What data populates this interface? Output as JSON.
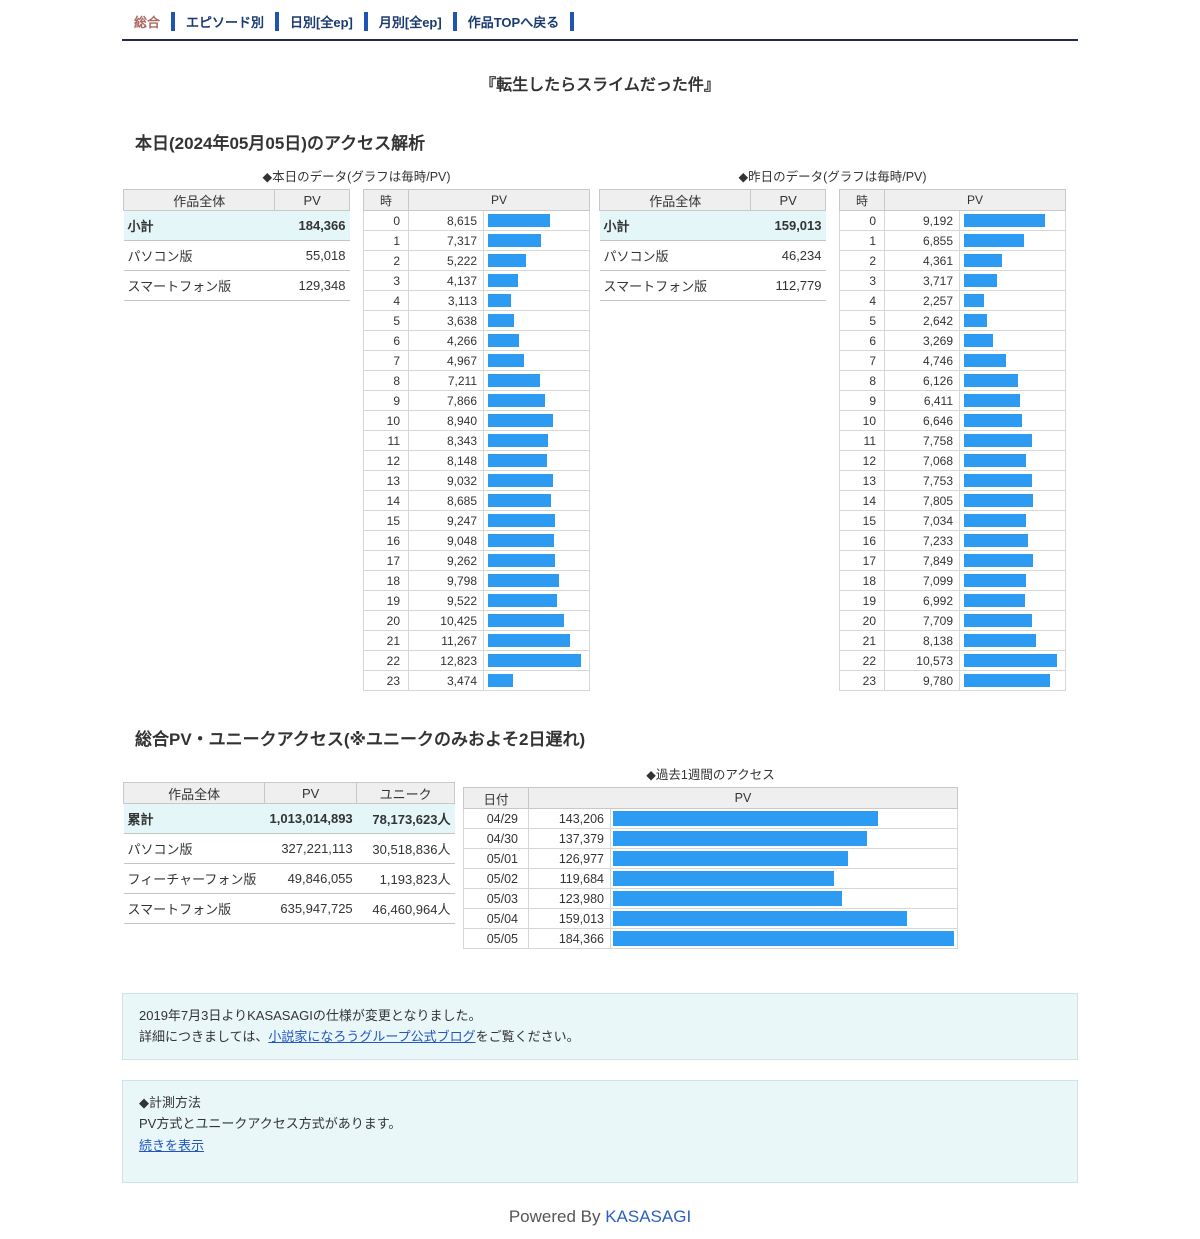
{
  "nav": {
    "items": [
      {
        "label": "総合",
        "current": true
      },
      {
        "label": "エピソード別",
        "current": false
      },
      {
        "label": "日別[全ep]",
        "current": false
      },
      {
        "label": "月別[全ep]",
        "current": false
      },
      {
        "label": "作品TOPへ戻る",
        "current": false
      }
    ]
  },
  "page_title": "『転生したらスライムだった件』",
  "today_section": {
    "heading": "本日(2024年05月05日)のアクセス解析",
    "today": {
      "caption": "◆本日のデータ(グラフは毎時/PV)",
      "summary": {
        "headers": [
          "作品全体",
          "PV"
        ],
        "rows": [
          {
            "label": "小計",
            "pv": "184,366",
            "highlight": true
          },
          {
            "label": "パソコン版",
            "pv": "55,018",
            "highlight": false
          },
          {
            "label": "スマートフォン版",
            "pv": "129,348",
            "highlight": false
          }
        ]
      },
      "hourly": {
        "headers": [
          "時",
          "PV"
        ],
        "rows": [
          {
            "label": "0",
            "value": 8615
          },
          {
            "label": "1",
            "value": 7317
          },
          {
            "label": "2",
            "value": 5222
          },
          {
            "label": "3",
            "value": 4137
          },
          {
            "label": "4",
            "value": 3113
          },
          {
            "label": "5",
            "value": 3638
          },
          {
            "label": "6",
            "value": 4266
          },
          {
            "label": "7",
            "value": 4967
          },
          {
            "label": "8",
            "value": 7211
          },
          {
            "label": "9",
            "value": 7866
          },
          {
            "label": "10",
            "value": 8940
          },
          {
            "label": "11",
            "value": 8343
          },
          {
            "label": "12",
            "value": 8148
          },
          {
            "label": "13",
            "value": 9032
          },
          {
            "label": "14",
            "value": 8685
          },
          {
            "label": "15",
            "value": 9247
          },
          {
            "label": "16",
            "value": 9048
          },
          {
            "label": "17",
            "value": 9262
          },
          {
            "label": "18",
            "value": 9798
          },
          {
            "label": "19",
            "value": 9522
          },
          {
            "label": "20",
            "value": 10425
          },
          {
            "label": "21",
            "value": 11267
          },
          {
            "label": "22",
            "value": 12823
          },
          {
            "label": "23",
            "value": 3474
          }
        ]
      }
    },
    "yesterday": {
      "caption": "◆昨日のデータ(グラフは毎時/PV)",
      "summary": {
        "headers": [
          "作品全体",
          "PV"
        ],
        "rows": [
          {
            "label": "小計",
            "pv": "159,013",
            "highlight": true
          },
          {
            "label": "パソコン版",
            "pv": "46,234",
            "highlight": false
          },
          {
            "label": "スマートフォン版",
            "pv": "112,779",
            "highlight": false
          }
        ]
      },
      "hourly": {
        "headers": [
          "時",
          "PV"
        ],
        "rows": [
          {
            "label": "0",
            "value": 9192
          },
          {
            "label": "1",
            "value": 6855
          },
          {
            "label": "2",
            "value": 4361
          },
          {
            "label": "3",
            "value": 3717
          },
          {
            "label": "4",
            "value": 2257
          },
          {
            "label": "5",
            "value": 2642
          },
          {
            "label": "6",
            "value": 3269
          },
          {
            "label": "7",
            "value": 4746
          },
          {
            "label": "8",
            "value": 6126
          },
          {
            "label": "9",
            "value": 6411
          },
          {
            "label": "10",
            "value": 6646
          },
          {
            "label": "11",
            "value": 7758
          },
          {
            "label": "12",
            "value": 7068
          },
          {
            "label": "13",
            "value": 7753
          },
          {
            "label": "14",
            "value": 7805
          },
          {
            "label": "15",
            "value": 7034
          },
          {
            "label": "16",
            "value": 7233
          },
          {
            "label": "17",
            "value": 7849
          },
          {
            "label": "18",
            "value": 7099
          },
          {
            "label": "19",
            "value": 6992
          },
          {
            "label": "20",
            "value": 7709
          },
          {
            "label": "21",
            "value": 8138
          },
          {
            "label": "22",
            "value": 10573
          },
          {
            "label": "23",
            "value": 9780
          }
        ]
      }
    }
  },
  "total_section": {
    "heading": "総合PV・ユニークアクセス(※ユニークのみおよそ2日遅れ)",
    "summary": {
      "headers": [
        "作品全体",
        "PV",
        "ユニーク"
      ],
      "rows": [
        {
          "label": "累計",
          "pv": "1,013,014,893",
          "unique": "78,173,623人",
          "highlight": true
        },
        {
          "label": "パソコン版",
          "pv": "327,221,113",
          "unique": "30,518,836人",
          "highlight": false
        },
        {
          "label": "フィーチャーフォン版",
          "pv": "49,846,055",
          "unique": "1,193,823人",
          "highlight": false
        },
        {
          "label": "スマートフォン版",
          "pv": "635,947,725",
          "unique": "46,460,964人",
          "highlight": false
        }
      ]
    },
    "weekly": {
      "caption": "◆過去1週間のアクセス",
      "headers": [
        "日付",
        "PV"
      ],
      "rows": [
        {
          "label": "04/29",
          "value": 143206
        },
        {
          "label": "04/30",
          "value": 137379
        },
        {
          "label": "05/01",
          "value": 126977
        },
        {
          "label": "05/02",
          "value": 119684
        },
        {
          "label": "05/03",
          "value": 123980
        },
        {
          "label": "05/04",
          "value": 159013
        },
        {
          "label": "05/05",
          "value": 184366
        }
      ]
    }
  },
  "notices": {
    "first_line1": "2019年7月3日よりKASASAGIの仕様が変更となりました。",
    "first_line2_pre": "詳細につきましては、",
    "first_link": "小説家になろうグループ公式ブログ",
    "first_line2_post": "をご覧ください。",
    "second_title": "◆計測方法",
    "second_body": "PV方式とユニークアクセス方式があります。",
    "second_link": "続きを表示"
  },
  "footer": {
    "powered_by": "Powered By ",
    "brand": "KASASAGI"
  },
  "colors": {
    "bar_blue": "#2d9bf2",
    "nav_separator": "#2053b4",
    "nav_link": "#1a3a70",
    "nav_current": "#a96a62",
    "highlight_row": "#e4f6f8",
    "notice_bg": "#e9f7f9",
    "link_blue": "#2456c0"
  }
}
